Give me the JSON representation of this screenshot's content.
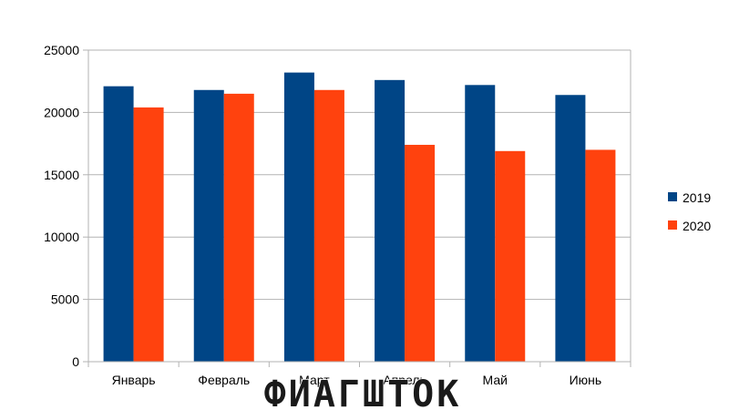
{
  "chart_data": {
    "type": "bar",
    "title": "",
    "xlabel": "",
    "ylabel": "",
    "categories": [
      "Январь",
      "Февраль",
      "Март",
      "Апрель",
      "Май",
      "Июнь"
    ],
    "series": [
      {
        "name": "2019",
        "color": "#004586",
        "values": [
          22100,
          21800,
          23200,
          22600,
          22200,
          21400
        ]
      },
      {
        "name": "2020",
        "color": "#ff420e",
        "values": [
          20400,
          21500,
          21800,
          17400,
          16900,
          17000
        ]
      }
    ],
    "ylim": [
      0,
      25000
    ],
    "yticks": [
      "0",
      "5000",
      "10000",
      "15000",
      "20000",
      "25000"
    ],
    "grid": true,
    "legend_position": "right",
    "watermark": "ФИАГШТОК"
  }
}
